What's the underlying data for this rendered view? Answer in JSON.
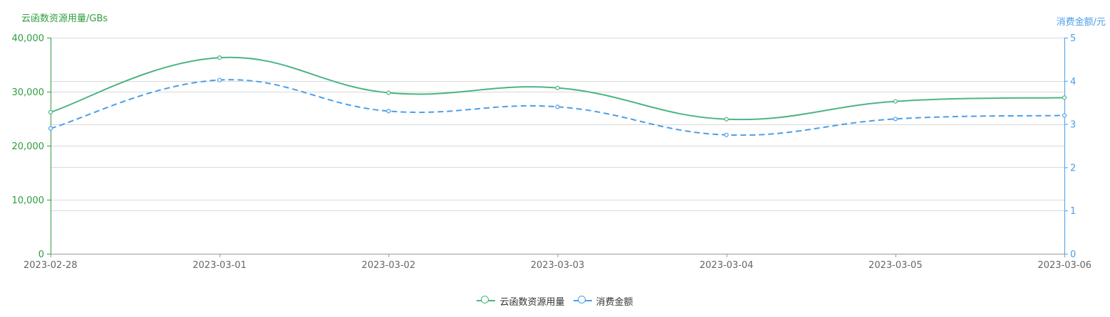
{
  "colors": {
    "primary": "#4cb585",
    "secondary": "#4a9fe8",
    "left_axis": "#2e9e3e",
    "right_axis": "#4a9fe8",
    "tick_text": "#666666",
    "grid": "#d9d9d9"
  },
  "chart_data": {
    "type": "line",
    "x": [
      "2023-02-28",
      "2023-03-01",
      "2023-03-02",
      "2023-03-03",
      "2023-03-04",
      "2023-03-05",
      "2023-03-06"
    ],
    "series": [
      {
        "name": "云函数资源用量",
        "axis": "left",
        "style": "solid",
        "values": [
          26200,
          36300,
          29800,
          30700,
          24900,
          28200,
          28900
        ]
      },
      {
        "name": "消费金额",
        "axis": "right",
        "style": "dashed",
        "values": [
          2.9,
          4.02,
          3.3,
          3.4,
          2.75,
          3.12,
          3.2
        ]
      }
    ],
    "y_left": {
      "label": "云函数资源用量/GBs",
      "min": 0,
      "max": 40000,
      "ticks": [
        0,
        10000,
        20000,
        30000,
        40000
      ],
      "tick_labels": [
        "0",
        "10,000",
        "20,000",
        "30,000",
        "40,000"
      ]
    },
    "y_right": {
      "label": "消费金额/元",
      "min": 0,
      "max": 5,
      "ticks": [
        0,
        1,
        2,
        3,
        4,
        5
      ],
      "tick_labels": [
        "0",
        "1",
        "2",
        "3",
        "4",
        "5"
      ]
    },
    "grid": true,
    "smooth": true,
    "legend": {
      "placement": "bottom-center",
      "items": [
        "云函数资源用量",
        "消费金额"
      ]
    }
  }
}
